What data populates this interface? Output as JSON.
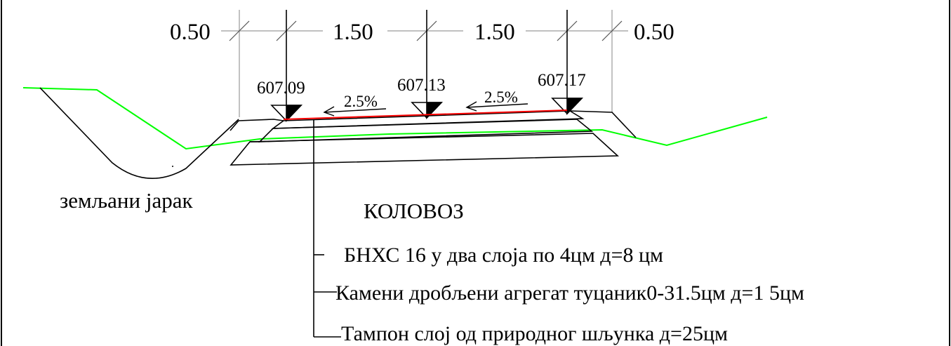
{
  "dimensions": [
    "0.50",
    "1.50",
    "1.50",
    "0.50"
  ],
  "elevations": [
    "607.09",
    "607.13",
    "607.17"
  ],
  "slopes": [
    "2.5%",
    "2.5%"
  ],
  "ditch_label": "земљани јарак",
  "section_title": "КОЛОВОЗ",
  "layers": [
    "БНХС 16 у два слоја по 4цм  д=8 цм",
    "Камени дробљени агрегат туцаник0-31.5цм д=1 5цм",
    "Тампон слој од природног шљунка д=25цм"
  ],
  "colors": {
    "lines": "#000000",
    "pavement_top": "#ff0000",
    "terrain": "#00ff00",
    "dimension_lines": "#9a9a9a"
  }
}
